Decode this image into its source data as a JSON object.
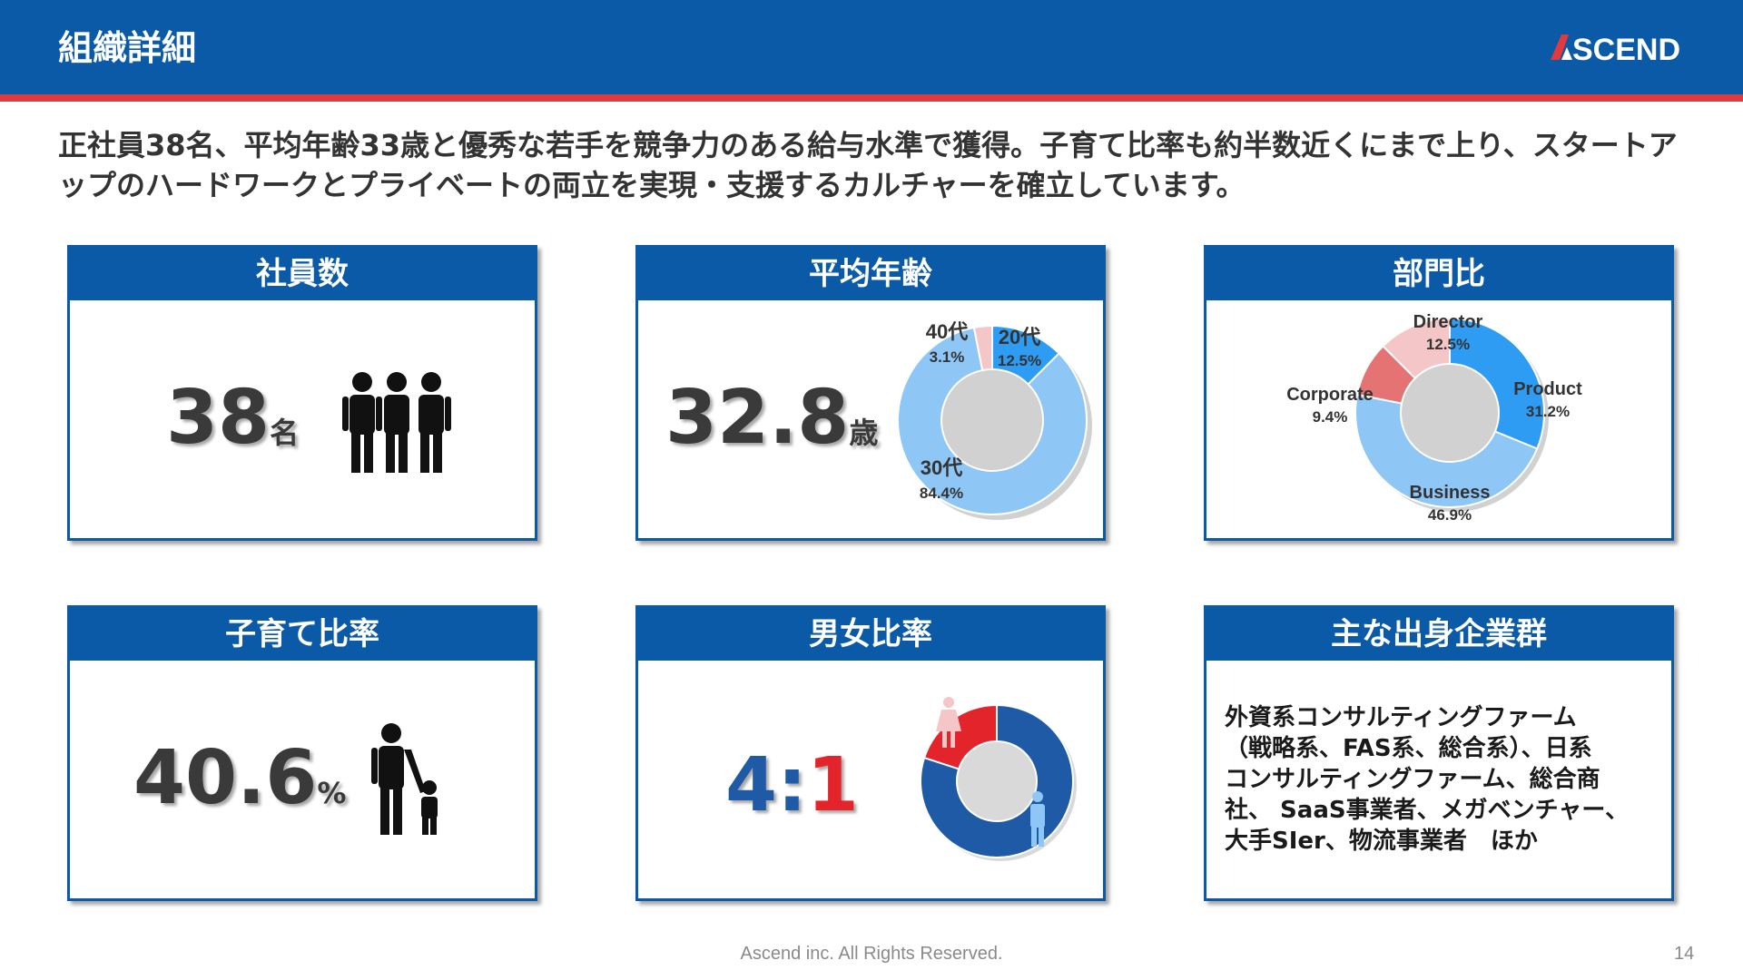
{
  "header": {
    "title": "組織詳細",
    "logo_text": "ASCEND"
  },
  "lead": "正社員38名、平均年齢33歳と優秀な若手を競争力のある給与水準で獲得。子育て比率も約半数近くにまで上り、スタートアップのハードワークとプライベートの両立を実現・支援するカルチャーを確立しています。",
  "cards": {
    "employees": {
      "title": "社員数",
      "value": "38",
      "unit": "名"
    },
    "avg_age": {
      "title": "平均年齢",
      "value": "32.8",
      "unit": "歳"
    },
    "dept": {
      "title": "部門比"
    },
    "parenting": {
      "title": "子育て比率",
      "value": "40.6",
      "unit": "%"
    },
    "gender": {
      "title": "男女比率",
      "male": "4",
      "sep": ":",
      "female": "1"
    },
    "origins": {
      "title": "主な出身企業群",
      "text": "外資系コンサルティングファーム\n（戦略系、FAS系、総合系）、日系\nコンサルティングファーム、総合商\n社、 SaaS事業者、メガベンチャー、\n大手SIer、物流事業者　ほか"
    }
  },
  "colors": {
    "brand_blue": "#0a5aa8",
    "brand_red": "#e03a3e",
    "light_blue": "#8ec6f6",
    "mid_blue": "#2f9cf4",
    "pink": "#f5c6c8",
    "salmon": "#e57373",
    "gender_blue": "#1e5aa6",
    "gender_red": "#e3242b"
  },
  "icons": {
    "employees": "group-of-people-icon",
    "parenting": "parent-child-icon",
    "gender_female": "female-figure-icon",
    "gender_male": "male-figure-icon"
  },
  "chart_data": [
    {
      "type": "pie",
      "name": "age",
      "slices": [
        {
          "label": "20代",
          "value": 12.5,
          "text": "12.5%",
          "color": "#2f9cf4"
        },
        {
          "label": "30代",
          "value": 84.4,
          "text": "84.4%",
          "color": "#8ec6f6"
        },
        {
          "label": "40代",
          "value": 3.1,
          "text": "3.1%",
          "color": "#f5c6c8"
        }
      ]
    },
    {
      "type": "pie",
      "name": "department",
      "slices": [
        {
          "label": "Product",
          "value": 31.2,
          "text": "31.2%",
          "color": "#2f9cf4"
        },
        {
          "label": "Business",
          "value": 46.9,
          "text": "46.9%",
          "color": "#8ec6f6"
        },
        {
          "label": "Corporate",
          "value": 9.4,
          "text": "9.4%",
          "color": "#e57373"
        },
        {
          "label": "Director",
          "value": 12.5,
          "text": "12.5%",
          "color": "#f5c6c8"
        }
      ]
    },
    {
      "type": "pie",
      "name": "gender",
      "slices": [
        {
          "label": "male",
          "value": 4,
          "color": "#1e5aa6"
        },
        {
          "label": "female",
          "value": 1,
          "color": "#e3242b"
        }
      ]
    }
  ],
  "footer": {
    "copyright": "Ascend inc. All Rights Reserved.",
    "page": "14"
  }
}
